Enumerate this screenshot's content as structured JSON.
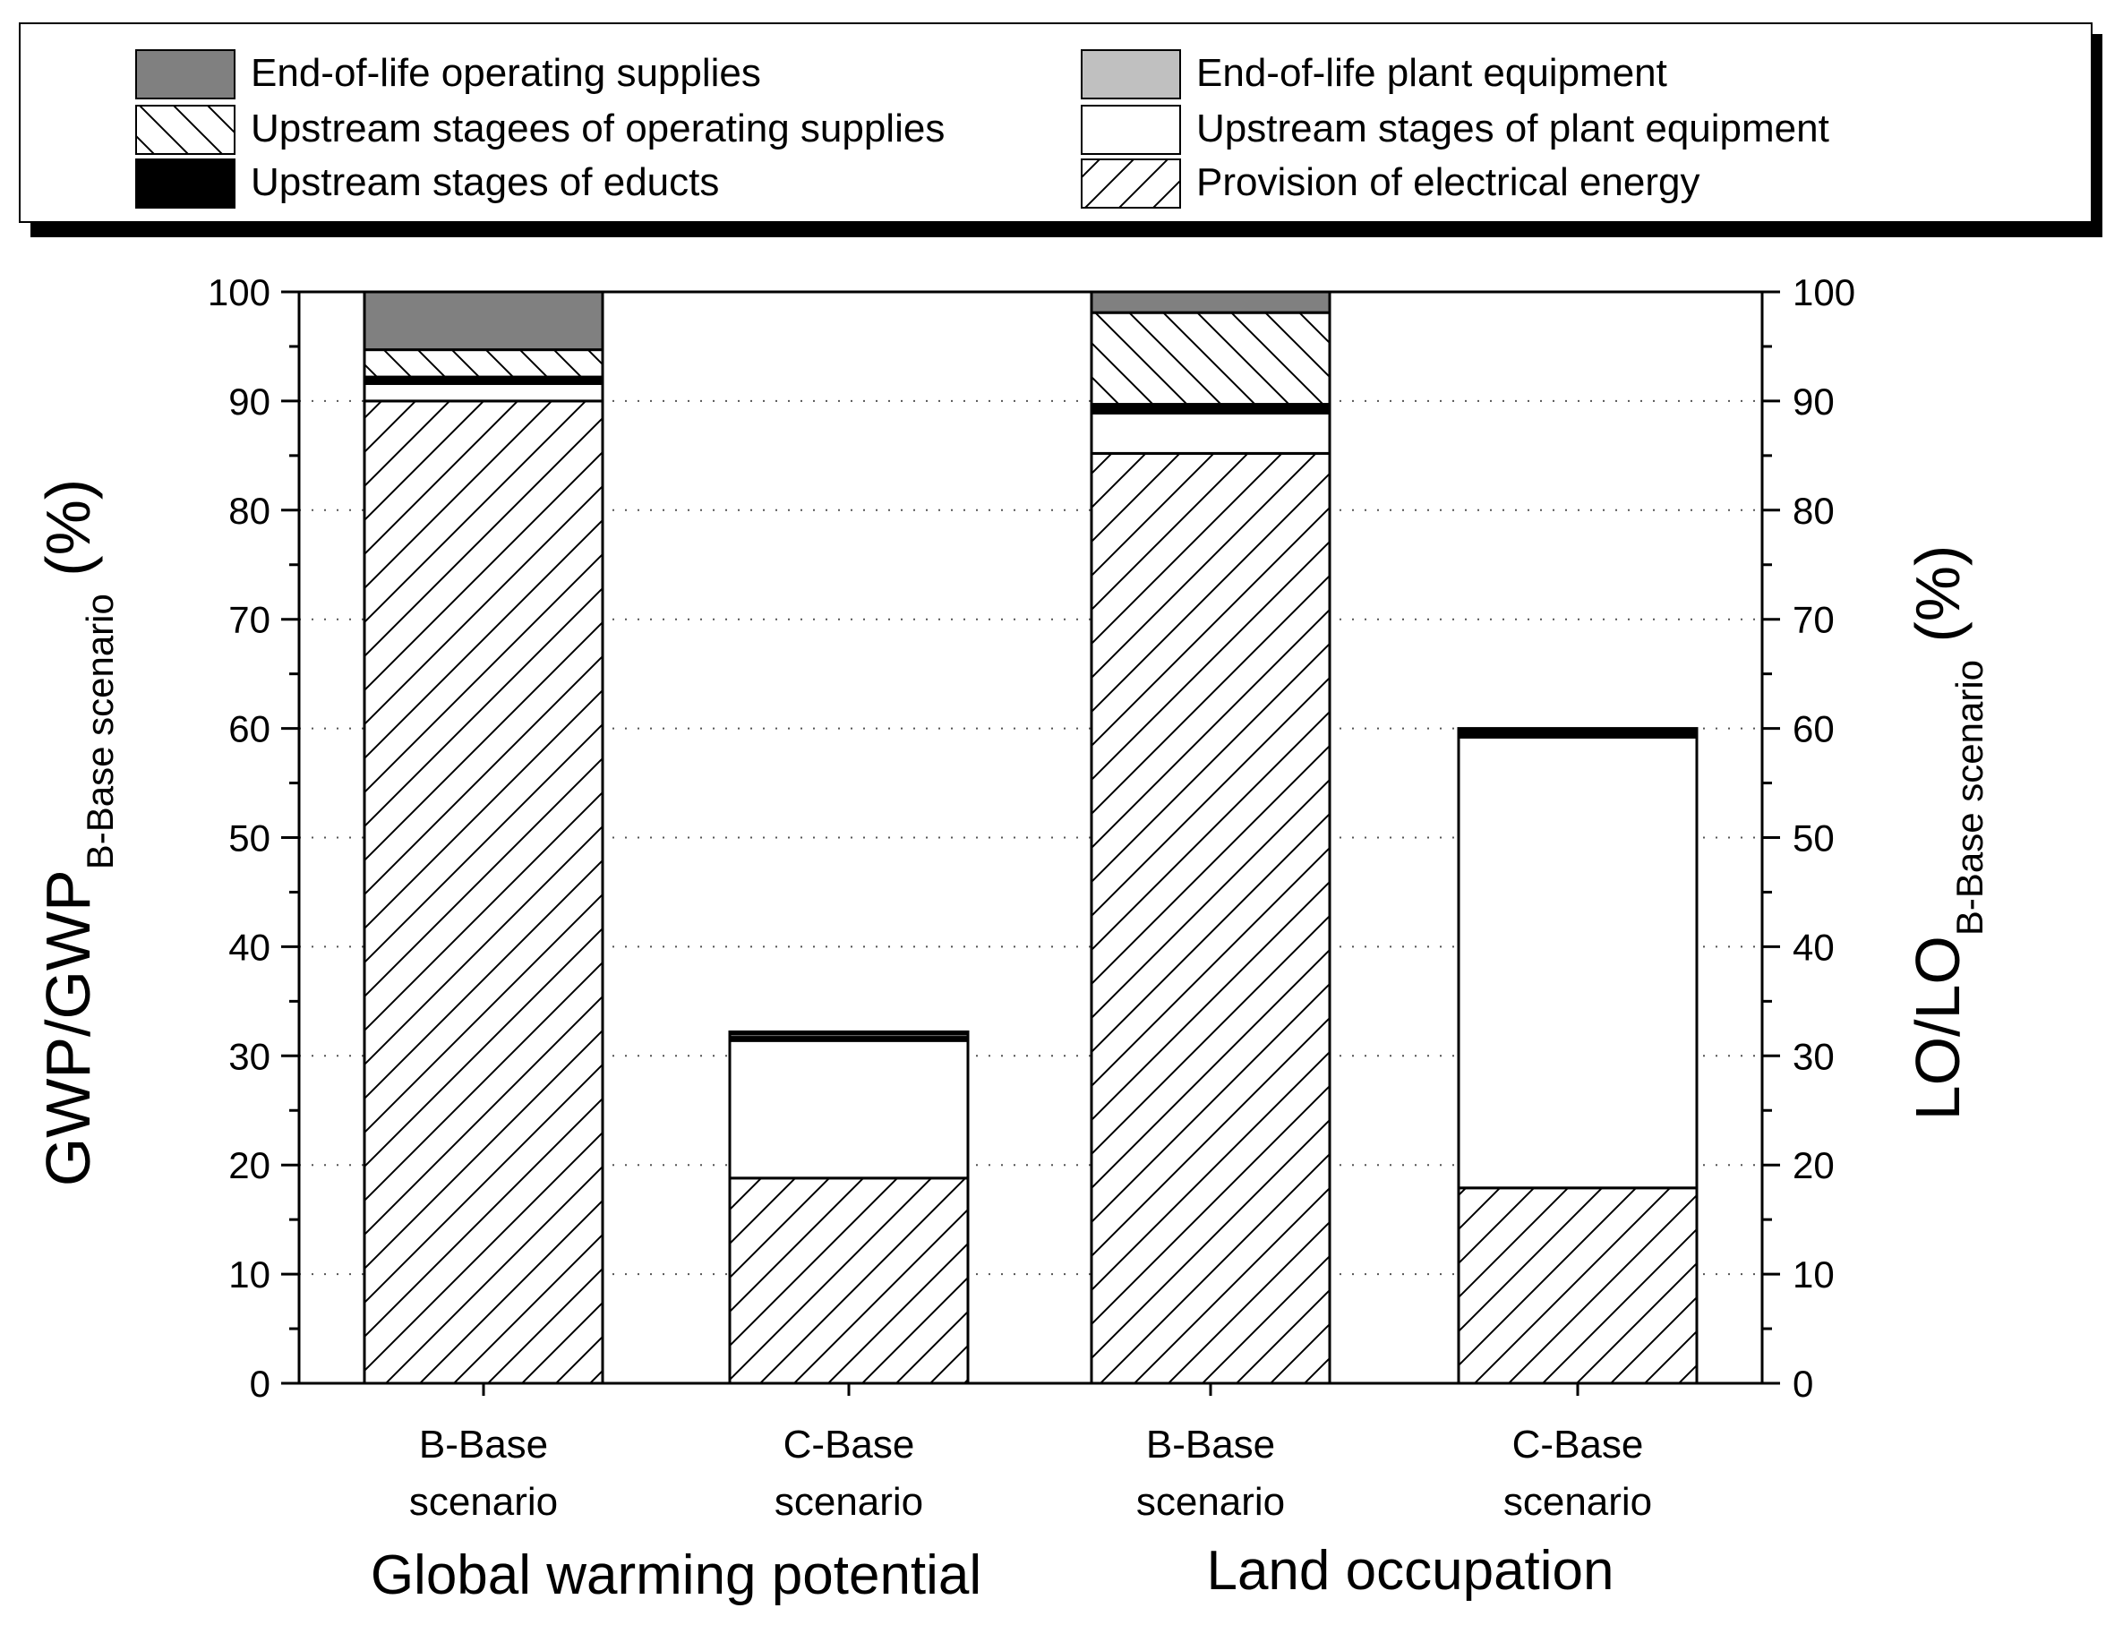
{
  "chart_data": {
    "type": "bar",
    "stacked": true,
    "ylim": [
      0,
      100
    ],
    "yticks": [
      "0",
      "10",
      "20",
      "30",
      "40",
      "50",
      "60",
      "70",
      "80",
      "90",
      "100"
    ],
    "grid": "dotted horizontal",
    "ylabel_left": {
      "main": "GWP/GWP",
      "sub": "B-Base scenario",
      "unit": "(%)"
    },
    "ylabel_right": {
      "main": "LO/LO",
      "sub": "B-Base scenario",
      "unit": "(%)"
    },
    "groups": [
      "Global warming potential",
      "Land occupation"
    ],
    "categories": [
      {
        "line1": "B-Base",
        "line2": "scenario",
        "group": "Global warming potential"
      },
      {
        "line1": "C-Base",
        "line2": "scenario",
        "group": "Global warming potential"
      },
      {
        "line1": "B-Base",
        "line2": "scenario",
        "group": "Land occupation"
      },
      {
        "line1": "C-Base",
        "line2": "scenario",
        "group": "Land occupation"
      }
    ],
    "series": [
      {
        "name": "Provision of electrical energy",
        "fill": "hatch-fwd",
        "values": [
          90.0,
          18.8,
          85.2,
          17.9
        ]
      },
      {
        "name": "Upstream stages of plant equipment",
        "fill": "#ffffff",
        "values": [
          1.6,
          12.6,
          3.7,
          41.3
        ]
      },
      {
        "name": "Upstream stages of educts",
        "fill": "#000000",
        "values": [
          0.6,
          0.1,
          0.8,
          0.8
        ]
      },
      {
        "name": "Upstream stagees of operating supplies",
        "fill": "hatch-back",
        "values": [
          2.5,
          0.2,
          8.4,
          0.0
        ]
      },
      {
        "name": "End-of-life plant equipment",
        "fill": "#c0c0c0",
        "values": [
          0.0,
          0.3,
          0.0,
          0.0
        ]
      },
      {
        "name": "End-of-life operating supplies",
        "fill": "#808080",
        "values": [
          5.3,
          0.2,
          1.9,
          0.0
        ]
      }
    ],
    "legend_order": [
      "End-of-life operating supplies",
      "End-of-life plant equipment",
      "Upstream stagees of operating supplies",
      "Upstream stages of plant equipment",
      "Upstream stages of educts",
      "Provision of electrical energy"
    ],
    "legend_position": "top"
  }
}
